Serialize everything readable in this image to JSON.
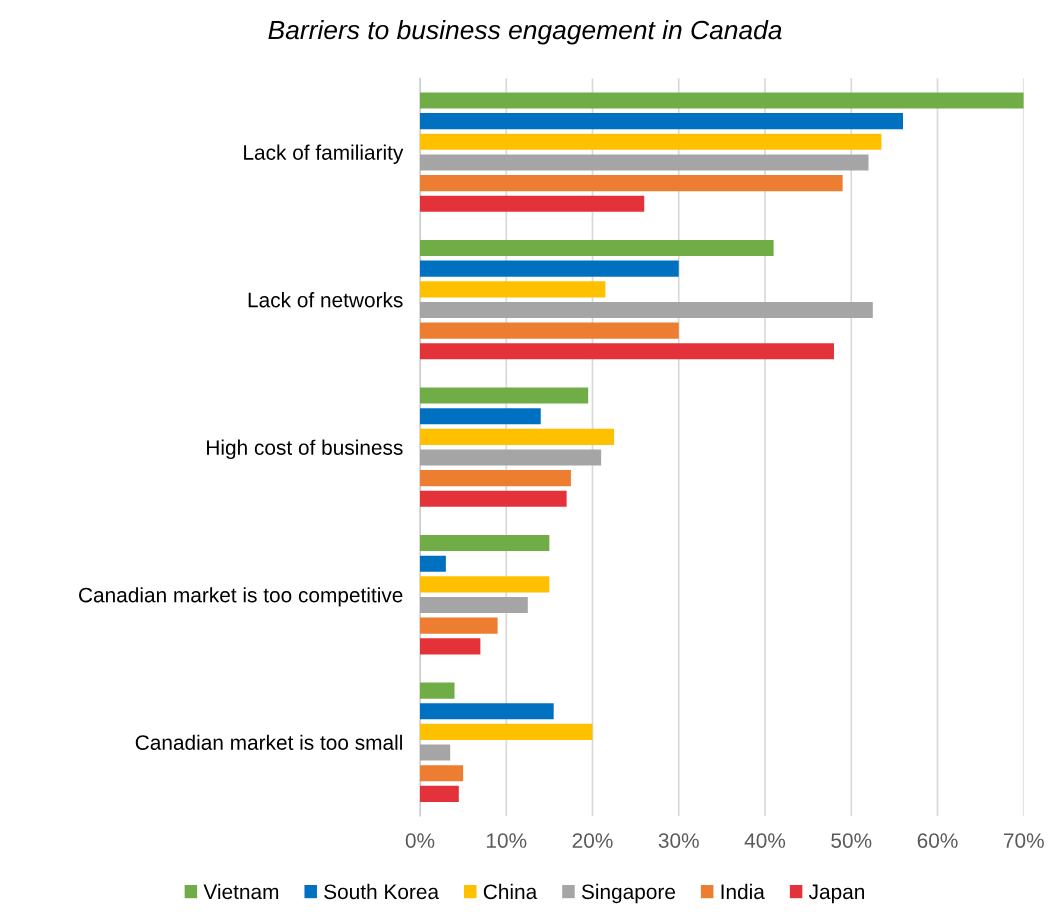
{
  "chart_data": {
    "type": "bar",
    "orientation": "horizontal",
    "title": "Barriers to business engagement in Canada",
    "categories": [
      "Lack of familiarity",
      "Lack of networks",
      "High cost of business",
      "Canadian market is too competitive",
      "Canadian market is too small"
    ],
    "series": [
      {
        "name": "Vietnam",
        "color": "#70ad47",
        "values": [
          70,
          41,
          19.5,
          15,
          4
        ]
      },
      {
        "name": "South Korea",
        "color": "#0070c0",
        "values": [
          56,
          30,
          14,
          3,
          15.5
        ]
      },
      {
        "name": "China",
        "color": "#ffc000",
        "values": [
          53.5,
          21.5,
          22.5,
          15,
          20
        ]
      },
      {
        "name": "Singapore",
        "color": "#a5a5a5",
        "values": [
          52,
          52.5,
          21,
          12.5,
          3.5
        ]
      },
      {
        "name": "India",
        "color": "#ed7d31",
        "values": [
          49,
          30,
          17.5,
          9,
          5
        ]
      },
      {
        "name": "Japan",
        "color": "#e3323a",
        "values": [
          26,
          48,
          17,
          7,
          4.5
        ]
      }
    ],
    "xlim": [
      0,
      70
    ],
    "xticks": [
      {
        "value": 0,
        "label": "0%"
      },
      {
        "value": 10,
        "label": "10%"
      },
      {
        "value": 20,
        "label": "20%"
      },
      {
        "value": 30,
        "label": "30%"
      },
      {
        "value": 40,
        "label": "40%"
      },
      {
        "value": 50,
        "label": "50%"
      },
      {
        "value": 60,
        "label": "60%"
      },
      {
        "value": 70,
        "label": "70%"
      }
    ],
    "grid": "x",
    "legend": "bottom"
  }
}
